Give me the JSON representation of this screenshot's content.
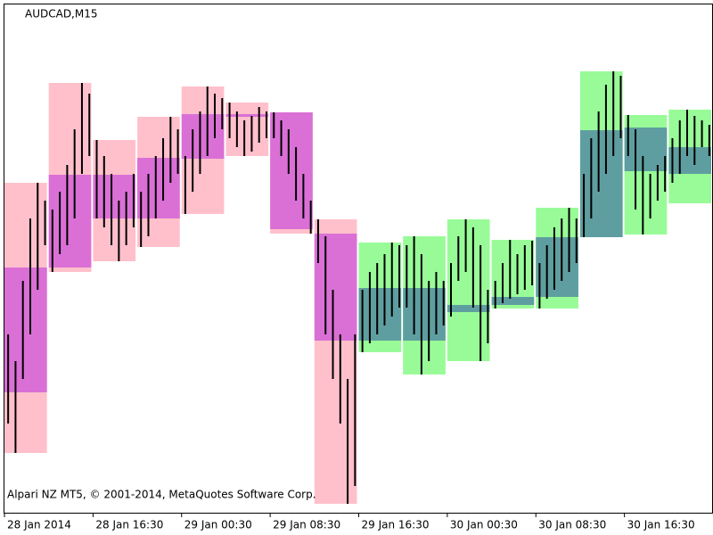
{
  "chart_data": {
    "type": "candlestick-boxes",
    "title": "AUDCAD,M15",
    "annotation": "Alpari NZ MT5, © 2001-2014, MetaQuotes Software Corp.",
    "xlim": [
      0,
      96
    ],
    "xticks": [
      {
        "value": 0,
        "label": "28 Jan 2014"
      },
      {
        "value": 12,
        "label": "28 Jan 16:30"
      },
      {
        "value": 24,
        "label": "29 Jan 00:30"
      },
      {
        "value": 36,
        "label": "29 Jan 08:30"
      },
      {
        "value": 48,
        "label": "29 Jan 16:30"
      },
      {
        "value": 60,
        "label": "30 Jan 00:30"
      },
      {
        "value": 72,
        "label": "30 Jan 08:30"
      },
      {
        "value": 84,
        "label": "30 Jan 16:30"
      }
    ],
    "ylim": [
      0,
      570
    ],
    "bars_per_box": 6,
    "bar_color": "#000000",
    "up_color": "#98fb98",
    "up_body_color": "#5f9ea0",
    "down_color": "#ffc0cb",
    "down_body_color": "#da70d6",
    "boxes": {
      "open": [
        275,
        379,
        379,
        398,
        447,
        447,
        449,
        313,
        193,
        193,
        225,
        233,
        242,
        309,
        383,
        380
      ],
      "close": [
        135,
        275,
        330,
        330,
        397,
        444,
        318,
        193,
        252,
        252,
        233,
        242,
        309,
        429,
        432,
        410
      ],
      "high": [
        370,
        482,
        418,
        444,
        478,
        460,
        449,
        329,
        303,
        310,
        329,
        306,
        342,
        495,
        446,
        452
      ],
      "low": [
        67,
        270,
        282,
        298,
        335,
        400,
        313,
        10,
        180,
        155,
        170,
        229,
        229,
        309,
        312,
        347
      ]
    },
    "bars": {
      "high": [
        200,
        170,
        260,
        330,
        370,
        350,
        340,
        360,
        390,
        430,
        482,
        470,
        418,
        400,
        380,
        350,
        360,
        380,
        360,
        380,
        400,
        420,
        444,
        430,
        400,
        430,
        450,
        478,
        470,
        465,
        460,
        450,
        440,
        445,
        455,
        450,
        449,
        440,
        430,
        410,
        380,
        350,
        329,
        310,
        250,
        200,
        150,
        200,
        250,
        270,
        280,
        290,
        303,
        300,
        300,
        310,
        290,
        260,
        270,
        260,
        280,
        310,
        329,
        320,
        300,
        250,
        260,
        280,
        306,
        290,
        300,
        305,
        280,
        300,
        320,
        330,
        342,
        330,
        380,
        420,
        450,
        480,
        495,
        490,
        446,
        430,
        400,
        380,
        390,
        400,
        420,
        440,
        452,
        445,
        440,
        435
      ],
      "low": [
        100,
        67,
        150,
        200,
        250,
        300,
        270,
        290,
        300,
        330,
        380,
        400,
        330,
        320,
        300,
        282,
        300,
        320,
        298,
        310,
        330,
        350,
        370,
        380,
        335,
        360,
        380,
        400,
        420,
        430,
        420,
        410,
        400,
        405,
        415,
        420,
        420,
        400,
        380,
        350,
        330,
        313,
        280,
        200,
        150,
        100,
        10,
        30,
        180,
        190,
        200,
        210,
        220,
        230,
        230,
        200,
        155,
        170,
        200,
        210,
        220,
        260,
        270,
        230,
        170,
        190,
        229,
        235,
        240,
        245,
        250,
        255,
        229,
        240,
        250,
        260,
        270,
        280,
        309,
        330,
        360,
        380,
        400,
        420,
        400,
        340,
        312,
        330,
        350,
        360,
        370,
        380,
        400,
        390,
        410,
        400
      ]
    }
  }
}
